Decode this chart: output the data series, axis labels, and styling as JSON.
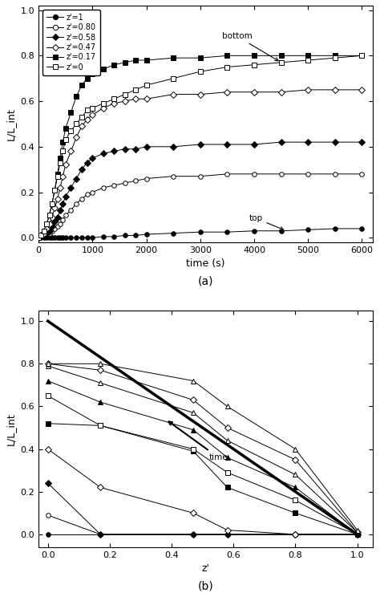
{
  "fig_width": 4.74,
  "fig_height": 7.39,
  "dpi": 100,
  "subplot_a": {
    "title": "(a)",
    "xlabel": "time (s)",
    "ylabel": "L/L_int",
    "xlim": [
      0,
      6200
    ],
    "ylim": [
      -0.02,
      1.02
    ],
    "xticks": [
      0,
      1000,
      2000,
      3000,
      4000,
      5000,
      6000
    ],
    "yticks": [
      0.0,
      0.2,
      0.4,
      0.6,
      0.8,
      1.0
    ],
    "legend_labels": [
      "z'=1",
      "z'=0.80",
      "z'=0.58",
      "z'=0.47",
      "z'=0.17",
      "z'=0"
    ],
    "series": {
      "z1": {
        "marker": "o",
        "filled": true,
        "time": [
          0,
          50,
          100,
          150,
          200,
          250,
          300,
          350,
          400,
          450,
          500,
          600,
          700,
          800,
          900,
          1000,
          1200,
          1400,
          1600,
          1800,
          2000,
          2500,
          3000,
          3500,
          4000,
          4500,
          5000,
          5500,
          6000
        ],
        "values": [
          0,
          0,
          0,
          0,
          0,
          0,
          0,
          0,
          0,
          0,
          0,
          0,
          0,
          0,
          0,
          0,
          0.005,
          0.005,
          0.01,
          0.01,
          0.015,
          0.02,
          0.025,
          0.025,
          0.03,
          0.03,
          0.035,
          0.04,
          0.04
        ]
      },
      "z080": {
        "marker": "o",
        "filled": false,
        "time": [
          0,
          50,
          100,
          150,
          200,
          250,
          300,
          350,
          400,
          450,
          500,
          600,
          700,
          800,
          900,
          1000,
          1200,
          1400,
          1600,
          1800,
          2000,
          2500,
          3000,
          3500,
          4000,
          4500,
          5000,
          5500,
          6000
        ],
        "values": [
          0,
          0.005,
          0.01,
          0.015,
          0.02,
          0.03,
          0.04,
          0.05,
          0.06,
          0.08,
          0.1,
          0.12,
          0.15,
          0.17,
          0.19,
          0.2,
          0.22,
          0.23,
          0.24,
          0.25,
          0.26,
          0.27,
          0.27,
          0.28,
          0.28,
          0.28,
          0.28,
          0.28,
          0.28
        ]
      },
      "z058": {
        "marker": "D",
        "filled": true,
        "time": [
          0,
          50,
          100,
          150,
          200,
          250,
          300,
          350,
          400,
          450,
          500,
          600,
          700,
          800,
          900,
          1000,
          1200,
          1400,
          1600,
          1800,
          2000,
          2500,
          3000,
          3500,
          4000,
          4500,
          5000,
          5500,
          6000
        ],
        "values": [
          0,
          0.005,
          0.01,
          0.02,
          0.03,
          0.05,
          0.07,
          0.09,
          0.12,
          0.15,
          0.18,
          0.22,
          0.26,
          0.3,
          0.33,
          0.35,
          0.37,
          0.38,
          0.39,
          0.39,
          0.4,
          0.4,
          0.41,
          0.41,
          0.41,
          0.42,
          0.42,
          0.42,
          0.42
        ]
      },
      "z047": {
        "marker": "D",
        "filled": false,
        "time": [
          0,
          50,
          100,
          150,
          200,
          250,
          300,
          350,
          400,
          450,
          500,
          600,
          700,
          800,
          900,
          1000,
          1200,
          1400,
          1600,
          1800,
          2000,
          2500,
          3000,
          3500,
          4000,
          4500,
          5000,
          5500,
          6000
        ],
        "values": [
          0,
          0.01,
          0.02,
          0.04,
          0.06,
          0.09,
          0.13,
          0.17,
          0.22,
          0.27,
          0.32,
          0.38,
          0.44,
          0.49,
          0.52,
          0.54,
          0.57,
          0.59,
          0.6,
          0.61,
          0.61,
          0.63,
          0.63,
          0.64,
          0.64,
          0.64,
          0.65,
          0.65,
          0.65
        ]
      },
      "z017": {
        "marker": "s",
        "filled": true,
        "time": [
          0,
          50,
          100,
          150,
          200,
          250,
          300,
          350,
          400,
          450,
          500,
          600,
          700,
          800,
          900,
          1000,
          1200,
          1400,
          1600,
          1800,
          2000,
          2500,
          3000,
          3500,
          4000,
          4500,
          5000,
          5500,
          6000
        ],
        "values": [
          0,
          0.01,
          0.03,
          0.06,
          0.1,
          0.15,
          0.21,
          0.28,
          0.35,
          0.42,
          0.48,
          0.55,
          0.62,
          0.67,
          0.7,
          0.72,
          0.74,
          0.76,
          0.77,
          0.78,
          0.78,
          0.79,
          0.79,
          0.8,
          0.8,
          0.8,
          0.8,
          0.8,
          0.8
        ]
      },
      "z0": {
        "marker": "s",
        "filled": false,
        "time": [
          0,
          50,
          100,
          150,
          200,
          250,
          300,
          350,
          400,
          450,
          500,
          600,
          700,
          800,
          900,
          1000,
          1200,
          1400,
          1600,
          1800,
          2000,
          2500,
          3000,
          3500,
          4000,
          4500,
          5000,
          5500,
          6000
        ],
        "values": [
          0,
          0.01,
          0.03,
          0.06,
          0.1,
          0.15,
          0.21,
          0.27,
          0.33,
          0.38,
          0.43,
          0.47,
          0.5,
          0.53,
          0.56,
          0.57,
          0.59,
          0.61,
          0.63,
          0.65,
          0.67,
          0.7,
          0.73,
          0.75,
          0.76,
          0.77,
          0.78,
          0.79,
          0.8
        ]
      }
    }
  },
  "subplot_b": {
    "title": "(b)",
    "xlabel": "z'",
    "ylabel": "L/L_int",
    "xlim": [
      -0.03,
      1.05
    ],
    "ylim": [
      -0.06,
      1.05
    ],
    "xticks": [
      0.0,
      0.2,
      0.4,
      0.6,
      0.8,
      1.0
    ],
    "yticks": [
      0.0,
      0.2,
      0.4,
      0.6,
      0.8,
      1.0
    ],
    "z_positions": [
      0,
      0.17,
      0.47,
      0.58,
      0.8,
      1.0
    ],
    "time_snapshots": [
      {
        "values": [
          0.0,
          0.0,
          0.0,
          0.0,
          0.0,
          0.0
        ],
        "marker": "o",
        "filled": true
      },
      {
        "values": [
          0.09,
          0.0,
          0.0,
          0.0,
          0.0,
          0.0
        ],
        "marker": "o",
        "filled": false
      },
      {
        "values": [
          0.24,
          0.0,
          0.0,
          0.0,
          0.0,
          0.0
        ],
        "marker": "D",
        "filled": true
      },
      {
        "values": [
          0.4,
          0.22,
          0.1,
          0.02,
          0.0,
          0.0
        ],
        "marker": "D",
        "filled": false
      },
      {
        "values": [
          0.52,
          0.51,
          0.39,
          0.22,
          0.1,
          0.0
        ],
        "marker": "s",
        "filled": true
      },
      {
        "values": [
          0.65,
          0.51,
          0.4,
          0.29,
          0.16,
          0.0
        ],
        "marker": "s",
        "filled": false
      },
      {
        "values": [
          0.72,
          0.62,
          0.49,
          0.36,
          0.22,
          0.0
        ],
        "marker": "^",
        "filled": true
      },
      {
        "values": [
          0.79,
          0.71,
          0.57,
          0.44,
          0.28,
          0.01
        ],
        "marker": "^",
        "filled": false
      },
      {
        "values": [
          0.8,
          0.77,
          0.63,
          0.5,
          0.35,
          0.01
        ],
        "marker": "D",
        "filled": false
      },
      {
        "values": [
          0.8,
          0.8,
          0.72,
          0.6,
          0.4,
          0.02
        ],
        "marker": "^",
        "filled": false
      }
    ]
  }
}
